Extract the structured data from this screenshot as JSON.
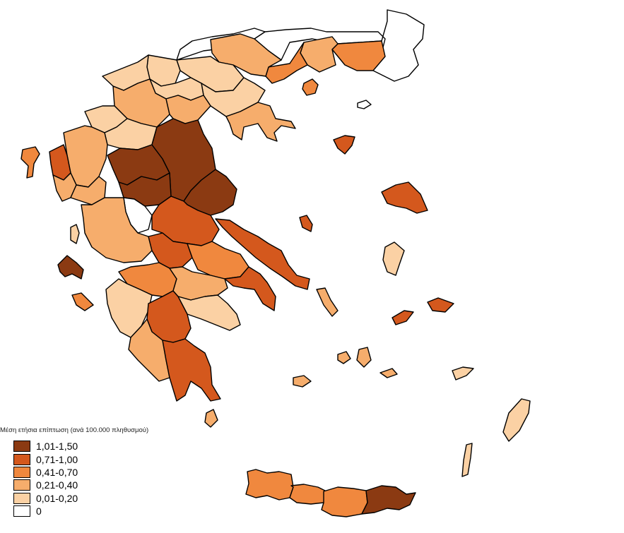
{
  "legend": {
    "title": "Μέση ετήσια επίπτωση (ανά 100.000 πληθυσμού)",
    "classes": [
      {
        "label": "1,01-1,50",
        "color": "#8b3a12"
      },
      {
        "label": "0,71-1,00",
        "color": "#d4581d"
      },
      {
        "label": "0,41-0,70",
        "color": "#f0883e"
      },
      {
        "label": "0,21-0,40",
        "color": "#f6ad6c"
      },
      {
        "label": "0,01-0,20",
        "color": "#fbd1a4"
      },
      {
        "label": "0",
        "color": "#ffffff"
      }
    ]
  },
  "map": {
    "region_classes": {
      "thrace_east": "0,41-0,70",
      "thrace_north": "0",
      "thrace_central": "0,21-0,40",
      "macedonia_east_drama": "0,41-0,70",
      "macedonia_north_serres": "0",
      "macedonia_kilkis": "0,21-0,40",
      "macedonia_pella": "0,01-0,20",
      "macedonia_florina": "0,01-0,20",
      "macedonia_kastoria": "0,01-0,20",
      "macedonia_kozani": "0,21-0,40",
      "macedonia_imathia": "0,01-0,20",
      "macedonia_thessaloniki": "0,01-0,20",
      "macedonia_chalkidiki": "0,21-0,40",
      "macedonia_pieria": "0,21-0,40",
      "epirus_ioannina": "0,21-0,40",
      "epirus_thesprotia": "0,71-1,00",
      "epirus_preveza": "0,21-0,40",
      "epirus_arta": "0,21-0,40",
      "thessaly_trikala": "1,01-1,50",
      "thessaly_larisa": "1,01-1,50",
      "thessaly_karditsa": "1,01-1,50",
      "thessaly_magnisia": "1,01-1,50",
      "central_evrytania": "0",
      "central_fthiotida": "0,71-1,00",
      "central_fokida": "0,71-1,00",
      "central_voiotia": "0,41-0,70",
      "central_aitoloakarnania": "0,21-0,40",
      "evia": "0,71-1,00",
      "attica": "0,71-1,00",
      "pelop_achaia": "0,41-0,70",
      "pelop_ilia": "0,01-0,20",
      "pelop_korinthia": "0,21-0,40",
      "pelop_argolida": "0,01-0,20",
      "pelop_arkadia": "0,71-1,00",
      "pelop_messinia": "0,21-0,40",
      "pelop_lakonia": "0,71-1,00",
      "ionian_corfu": "0,41-0,70",
      "ionian_lefkada": "0,01-0,20",
      "ionian_kefalonia": "1,01-1,50",
      "ionian_zakynthos": "0,41-0,70",
      "island_thasos": "0,41-0,70",
      "island_lemnos": "0,71-1,00",
      "island_lesvos": "0,71-1,00",
      "island_chios": "0,01-0,20",
      "island_samos": "0,71-1,00",
      "island_ikaria": "0,71-1,00",
      "island_rhodes": "0,01-0,20",
      "island_karpathos": "0,01-0,20",
      "island_skiathos": "0,71-1,00",
      "island_cyclades_naxos": "0,21-0,40",
      "island_cyclades_andros": "0,21-0,40",
      "island_kythira": "0,21-0,40",
      "crete_chania": "0,41-0,70",
      "crete_rethymno": "0,41-0,70",
      "crete_heraklion": "0,41-0,70",
      "crete_lasithi": "1,01-1,50",
      "samothraki": "0"
    }
  }
}
